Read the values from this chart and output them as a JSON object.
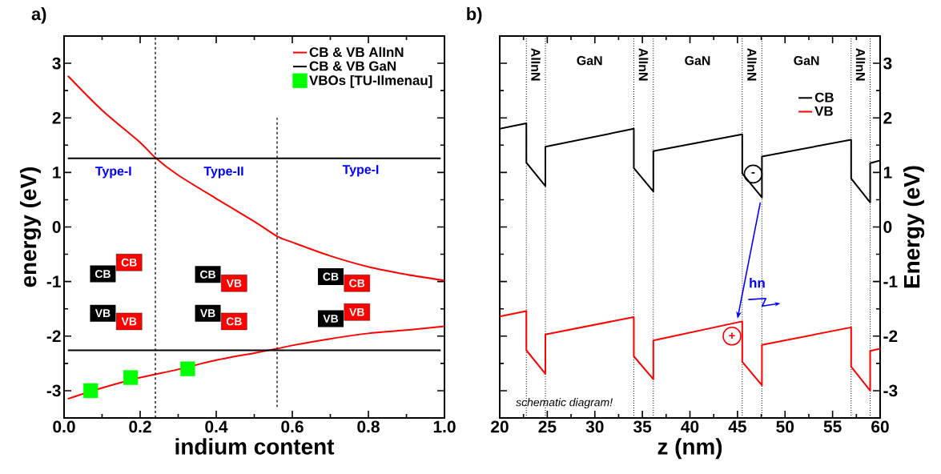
{
  "chart_data": [
    {
      "type": "line",
      "title": "a)",
      "xlabel": "indium content",
      "ylabel": "energy (eV)",
      "xlim": [
        0,
        1
      ],
      "xticks": [
        {
          "value": 0,
          "label": "0.0"
        },
        0.2,
        0.4,
        0.6,
        0.8,
        {
          "value": 1,
          "label": "1.0"
        }
      ],
      "ylim": [
        -3.5,
        3.5
      ],
      "yticks": [
        -3,
        -2,
        -1,
        0,
        1,
        2,
        3
      ],
      "legend": "top right",
      "annotations": [
        "Type-I",
        "Type-II",
        "Type-I",
        "CB",
        "CB",
        "VB",
        "VB",
        "CB",
        "VB",
        "VB",
        "CB",
        "CB",
        "CB",
        "VB",
        "VB"
      ],
      "series": [
        {
          "name": "CB & VB AlInN",
          "color": "#ff0000",
          "x": [
            0.01,
            0.1,
            0.2,
            0.24,
            0.3,
            0.4,
            0.5,
            0.56,
            0.6,
            0.7,
            0.8,
            0.9,
            1.0
          ],
          "values": [
            2.77,
            2.14,
            1.55,
            1.27,
            0.95,
            0.52,
            0.1,
            -0.17,
            -0.28,
            -0.53,
            -0.73,
            -0.87,
            -0.98
          ]
        },
        {
          "color": "#ff0000",
          "x": [
            0.01,
            0.1,
            0.2,
            0.24,
            0.3,
            0.4,
            0.5,
            0.56,
            0.6,
            0.7,
            0.8,
            0.9,
            1.0
          ],
          "values": [
            -3.15,
            -2.95,
            -2.76,
            -2.7,
            -2.61,
            -2.44,
            -2.31,
            -2.23,
            -2.17,
            -2.05,
            -1.95,
            -1.89,
            -1.82
          ]
        },
        {
          "name": "CB & VB GaN",
          "color": "#000000",
          "x": [
            0.01,
            0.99
          ],
          "values": [
            1.26,
            1.26
          ]
        },
        {
          "color": "#000000",
          "x": [
            0.01,
            0.99
          ],
          "values": [
            -2.26,
            -2.26
          ]
        },
        {
          "name": "VBOs [TU-Ilmenau]",
          "type": "scatter",
          "marker": "square",
          "color": "#00ff00",
          "x": [
            0.07,
            0.175,
            0.325
          ],
          "values": [
            -3.0,
            -2.76,
            -2.6
          ]
        },
        {
          "color": "#000000",
          "line_style": "dashed",
          "x": [
            0.24,
            0.24
          ],
          "values": [
            -3.5,
            3.5
          ]
        },
        {
          "color": "#000000",
          "line_style": "dashed",
          "x": [
            0.56,
            0.56
          ],
          "values": [
            -3.3,
            2.0
          ]
        }
      ]
    },
    {
      "type": "line",
      "title": "b)",
      "xlabel": "z (nm)",
      "y2label": "Energy (eV)",
      "xlim": [
        20,
        60
      ],
      "xticks": [
        20,
        25,
        30,
        35,
        40,
        45,
        50,
        55,
        60
      ],
      "y2lim": [
        -3.5,
        3.5
      ],
      "y2ticks": [
        -3,
        -2,
        -1,
        0,
        1,
        2,
        3
      ],
      "legend": "right",
      "ref_lines": [
        {
          "axis": "x",
          "value": 22.8,
          "line_style": "dotted"
        },
        {
          "axis": "x",
          "value": 24.8,
          "line_style": "dotted"
        },
        {
          "axis": "x",
          "value": 34.1,
          "line_style": "dotted"
        },
        {
          "axis": "x",
          "value": 36.15,
          "line_style": "dotted"
        },
        {
          "axis": "x",
          "value": 45.5,
          "line_style": "dotted"
        },
        {
          "axis": "x",
          "value": 47.57,
          "line_style": "dotted"
        },
        {
          "axis": "x",
          "value": 56.95,
          "line_style": "dotted"
        },
        {
          "axis": "x",
          "value": 58.95,
          "line_style": "dotted"
        }
      ],
      "annotations": [
        "AlInN",
        "GaN",
        "AlInN",
        "GaN",
        "AlInN",
        "GaN",
        "AlInN",
        "schematic diagram!",
        "hn",
        "-",
        "+"
      ],
      "series": [
        {
          "name": "CB",
          "color": "#000000",
          "axis": "y2",
          "x": [
            20,
            22.8,
            22.8,
            24.8,
            24.8,
            34.1,
            34.1,
            36.15,
            36.15,
            45.5,
            45.5,
            47.57,
            47.57,
            56.95,
            56.95,
            58.95,
            58.95,
            60
          ],
          "values": [
            1.8,
            1.9,
            1.18,
            0.75,
            1.47,
            1.8,
            1.08,
            0.65,
            1.39,
            1.7,
            0.98,
            0.54,
            1.29,
            1.6,
            0.89,
            0.45,
            1.17,
            1.22
          ]
        },
        {
          "name": "VB",
          "color": "#ff0000",
          "axis": "y2",
          "x": [
            20,
            22.8,
            22.8,
            24.8,
            24.8,
            34.1,
            34.1,
            36.15,
            36.15,
            45.5,
            45.5,
            47.57,
            47.57,
            56.95,
            56.95,
            58.95,
            58.95,
            60
          ],
          "values": [
            -1.64,
            -1.54,
            -2.26,
            -2.69,
            -1.97,
            -1.65,
            -2.37,
            -2.79,
            -2.08,
            -1.73,
            -2.47,
            -2.9,
            -2.16,
            -1.84,
            -2.56,
            -3.0,
            -2.27,
            -2.23
          ]
        }
      ]
    }
  ]
}
